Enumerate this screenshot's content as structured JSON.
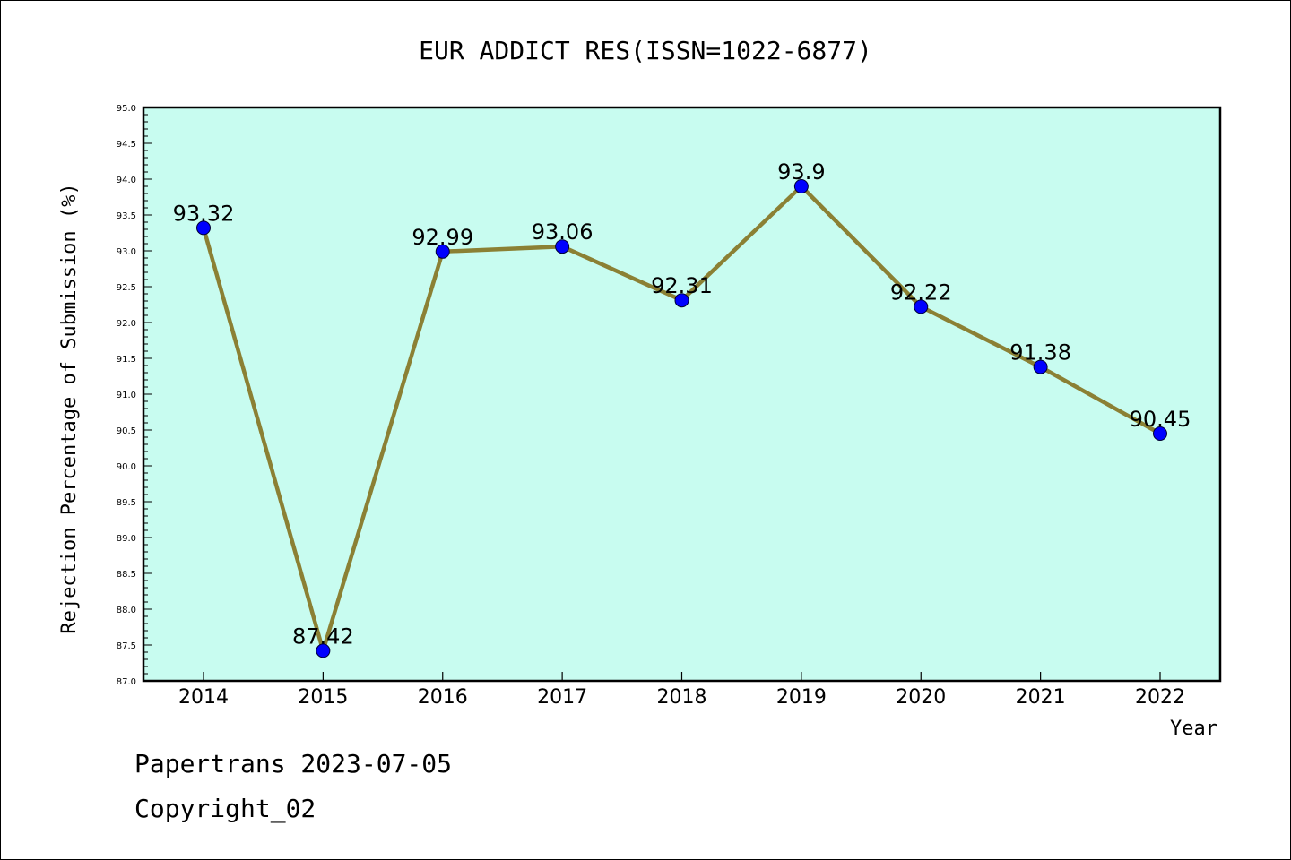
{
  "chart_data": {
    "type": "line",
    "title": "EUR ADDICT RES(ISSN=1022-6877)",
    "xlabel": "Year",
    "ylabel": "Rejection Percentage of Submission (%)",
    "categories": [
      "2014",
      "2015",
      "2016",
      "2017",
      "2018",
      "2019",
      "2020",
      "2021",
      "2022"
    ],
    "series": [
      {
        "values": [
          93.32,
          87.42,
          92.99,
          93.06,
          92.31,
          93.9,
          92.22,
          91.38,
          90.45
        ],
        "data_labels": [
          "93.32",
          "87.42",
          "92.99",
          "93.06",
          "92.31",
          "93.9",
          "92.22",
          "91.38",
          "90.45"
        ]
      }
    ],
    "ylim": [
      87.0,
      95.0
    ],
    "y_ticks": [
      "87.0",
      "87.5",
      "88.0",
      "88.5",
      "89.0",
      "89.5",
      "90.0",
      "90.5",
      "91.0",
      "91.5",
      "92.0",
      "92.5",
      "93.0",
      "93.5",
      "94.0",
      "94.5",
      "95.0"
    ],
    "colors": {
      "plot_background": "#c8fcf0",
      "line": "#8b8034",
      "marker": "#0000ff"
    },
    "grid": false,
    "legend": "none"
  },
  "footer": {
    "line1": "Papertrans 2023-07-05",
    "line2": "Copyright_02"
  }
}
